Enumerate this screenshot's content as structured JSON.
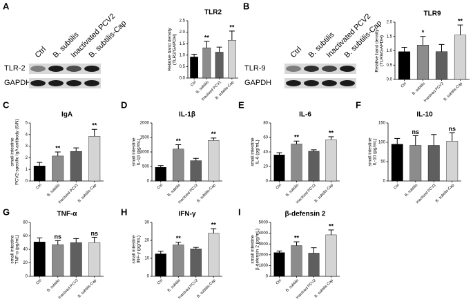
{
  "blots": [
    {
      "panel": "B",
      "lanes": [
        "Ctrl",
        "B. subtilis",
        "Inactivated PCV2",
        "B. subtilis-Cap"
      ],
      "rows": [
        "TLR-9",
        "GAPDH"
      ]
    }
  ],
  "blot_a": {
    "panel": "A",
    "lanes": [
      "Ctrl",
      "B. subtilis",
      "Inactivated PCV2",
      "B. subtilis-Cap"
    ],
    "rows": [
      "TLR-2",
      "GAPDH"
    ]
  },
  "chart_data": [
    {
      "type": "bar",
      "title": "TLR2",
      "ylabel": [
        "Relative band density",
        "(TLR2/GAPDH)"
      ],
      "categories": [
        "Ctrl",
        "B. subtilis",
        "Inactived PCV2",
        "B. subtilis-Cap"
      ],
      "values": [
        0.92,
        1.32,
        1.13,
        1.65
      ],
      "errors": [
        0.12,
        0.28,
        0.22,
        0.4
      ],
      "significance": [
        null,
        "**",
        null,
        "**"
      ],
      "colors": [
        "#000000",
        "#8c8c8c",
        "#5f5f5f",
        "#d4d4d4"
      ],
      "ylim": [
        0,
        2.5
      ],
      "yticks": [
        {
          "value": 0,
          "label": "0.0"
        },
        {
          "value": 0.5,
          "label": "0.5"
        },
        {
          "value": 1,
          "label": "1.0"
        },
        {
          "value": 1.5,
          "label": "1.5"
        },
        {
          "value": 2,
          "label": "2.0"
        },
        {
          "value": 2.5,
          "label": "2.5"
        }
      ]
    },
    {
      "type": "bar",
      "panel": "B",
      "title": "TLR9",
      "ylabel": [
        "Relative band density",
        "(TLR9/GAPDH)"
      ],
      "categories": [
        "Ctrl",
        "B. subtilis",
        "Inactived PCV2",
        "B. subtilis-Cap"
      ],
      "values": [
        0.97,
        1.2,
        0.97,
        1.55
      ],
      "errors": [
        0.15,
        0.3,
        0.25,
        0.35
      ],
      "significance": [
        null,
        "*",
        null,
        "**"
      ],
      "colors": [
        "#000000",
        "#8c8c8c",
        "#5f5f5f",
        "#d4d4d4"
      ],
      "ylim": [
        0,
        2
      ],
      "yticks": [
        {
          "value": 0,
          "label": "0.0"
        },
        {
          "value": 0.5,
          "label": "0.5"
        },
        {
          "value": 1,
          "label": "1.0"
        },
        {
          "value": 1.5,
          "label": "1.5"
        },
        {
          "value": 2,
          "label": "2.0"
        }
      ]
    },
    {
      "type": "bar",
      "panel": "C",
      "title": "IgA",
      "ylabel": [
        "small intestine",
        "PCV2-specific IgA antibody (S/N)"
      ],
      "categories": [
        "Ctrl",
        "B. subtilis",
        "Inactived PCV2",
        "B. subtilis-Cap"
      ],
      "values": [
        1.3,
        2.15,
        2.55,
        3.85
      ],
      "errors": [
        0.3,
        0.35,
        0.3,
        0.6
      ],
      "significance": [
        null,
        "**",
        null,
        "**"
      ],
      "colors": [
        "#000000",
        "#8c8c8c",
        "#5f5f5f",
        "#d4d4d4"
      ],
      "ylim": [
        0,
        5
      ],
      "yticks": [
        0,
        1,
        2,
        3,
        4,
        5
      ]
    },
    {
      "type": "bar",
      "panel": "D",
      "title": "IL-1β",
      "ylabel": [
        "small intestine",
        "IL-1β (pg/mL)"
      ],
      "categories": [
        "Ctrl",
        "B. subtilis",
        "Inactived PCV2",
        "B. subtilis-Cap"
      ],
      "values": [
        470,
        1100,
        700,
        1400
      ],
      "errors": [
        60,
        150,
        80,
        80
      ],
      "significance": [
        null,
        "**",
        null,
        "**"
      ],
      "colors": [
        "#000000",
        "#8c8c8c",
        "#5f5f5f",
        "#d4d4d4"
      ],
      "ylim": [
        0,
        2000
      ],
      "yticks": [
        0,
        500,
        1000,
        1500,
        2000
      ]
    },
    {
      "type": "bar",
      "panel": "E",
      "title": "IL-6",
      "ylabel": [
        "small intestine",
        "IL-6 (pg/mL)"
      ],
      "categories": [
        "Ctrl",
        "B. subtilis",
        "Inactived PCV2",
        "B. subtilis-Cap"
      ],
      "values": [
        36,
        51,
        41,
        57
      ],
      "errors": [
        3,
        4,
        2,
        4
      ],
      "significance": [
        null,
        "**",
        null,
        "**"
      ],
      "colors": [
        "#000000",
        "#8c8c8c",
        "#5f5f5f",
        "#d4d4d4"
      ],
      "ylim": [
        0,
        80
      ],
      "yticks": [
        0,
        20,
        40,
        60,
        80
      ]
    },
    {
      "type": "bar",
      "panel": "F",
      "title": "IL-10",
      "ylabel": [
        "small intestine",
        "IL-10 (pg/mL)"
      ],
      "categories": [
        "Ctrl",
        "B. subtilis",
        "Inactived PCV2",
        "B. subtilis-Cap"
      ],
      "values": [
        95,
        92,
        92,
        103
      ],
      "errors": [
        15,
        25,
        28,
        22
      ],
      "significance": [
        null,
        "ns",
        null,
        "ns"
      ],
      "colors": [
        "#000000",
        "#8c8c8c",
        "#5f5f5f",
        "#d4d4d4"
      ],
      "ylim": [
        0,
        150
      ],
      "yticks": [
        0,
        50,
        100,
        150
      ]
    },
    {
      "type": "bar",
      "panel": "G",
      "title": "TNF-α",
      "ylabel": [
        "small intestine",
        "TNF-α (pg/mL)"
      ],
      "categories": [
        "Ctrl",
        "B. subtilis",
        "Inactived PCV2",
        "B. subtilis-Cap"
      ],
      "values": [
        51,
        47,
        50,
        50
      ],
      "errors": [
        6,
        6,
        6,
        8
      ],
      "significance": [
        null,
        "ns",
        null,
        "ns"
      ],
      "colors": [
        "#000000",
        "#8c8c8c",
        "#5f5f5f",
        "#d4d4d4"
      ],
      "ylim": [
        0,
        80
      ],
      "yticks": [
        0,
        20,
        40,
        60,
        80
      ]
    },
    {
      "type": "bar",
      "panel": "H",
      "title": "IFN-γ",
      "ylabel": [
        "small intestine",
        "INF-γ (pg/mL)"
      ],
      "categories": [
        "Ctrl",
        "B. subtilis",
        "Inactived PCV2",
        "B. subtilis-Cap"
      ],
      "values": [
        12.5,
        17.5,
        15.3,
        24
      ],
      "errors": [
        1.5,
        1.5,
        0.8,
        2.5
      ],
      "significance": [
        null,
        "**",
        null,
        "**"
      ],
      "colors": [
        "#000000",
        "#8c8c8c",
        "#5f5f5f",
        "#d4d4d4"
      ],
      "ylim": [
        0,
        30
      ],
      "yticks": [
        0,
        10,
        20,
        30
      ]
    },
    {
      "type": "bar",
      "panel": "I",
      "title": "β-defensin 2",
      "ylabel": [
        "small intestine",
        "β-defensin 2 (pg/mL)"
      ],
      "categories": [
        "Ctrl",
        "B. subtilis",
        "Inactived PCV2",
        "B. subtilis-Cap"
      ],
      "values": [
        2200,
        2850,
        2150,
        3850
      ],
      "errors": [
        150,
        350,
        500,
        450
      ],
      "significance": [
        null,
        "**",
        null,
        "**"
      ],
      "colors": [
        "#000000",
        "#8c8c8c",
        "#5f5f5f",
        "#d4d4d4"
      ],
      "ylim": [
        0,
        5000
      ],
      "yticks": [
        0,
        1000,
        2000,
        3000,
        4000,
        5000
      ]
    }
  ]
}
